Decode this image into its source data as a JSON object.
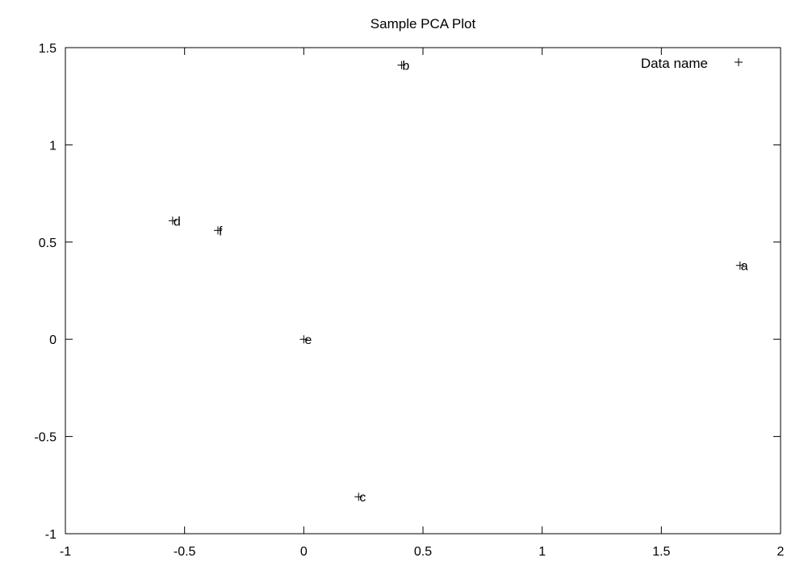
{
  "chart_data": {
    "type": "scatter",
    "title": "Sample PCA Plot",
    "xlabel": "",
    "ylabel": "",
    "xlim": [
      -1,
      2
    ],
    "ylim": [
      -1,
      1.5
    ],
    "x_ticks": [
      -1,
      -0.5,
      0,
      0.5,
      1,
      1.5,
      2
    ],
    "x_tick_labels": [
      "-1",
      "-0.5",
      "0",
      "0.5",
      "1",
      "1.5",
      "2"
    ],
    "y_ticks": [
      -1,
      -0.5,
      0,
      0.5,
      1,
      1.5
    ],
    "y_tick_labels": [
      "-1",
      "-0.5",
      "0",
      "0.5",
      "1",
      "1.5"
    ],
    "grid": false,
    "legend": {
      "position": "top-right",
      "entries": [
        "Data name"
      ]
    },
    "series": [
      {
        "name": "Data name",
        "marker": "plus",
        "points": [
          {
            "label": "a",
            "x": 1.83,
            "y": 0.38
          },
          {
            "label": "b",
            "x": 0.41,
            "y": 1.41
          },
          {
            "label": "c",
            "x": 0.23,
            "y": -0.81
          },
          {
            "label": "d",
            "x": -0.55,
            "y": 0.61
          },
          {
            "label": "e",
            "x": 0.0,
            "y": 0.0
          },
          {
            "label": "f",
            "x": -0.36,
            "y": 0.56
          }
        ]
      }
    ]
  }
}
